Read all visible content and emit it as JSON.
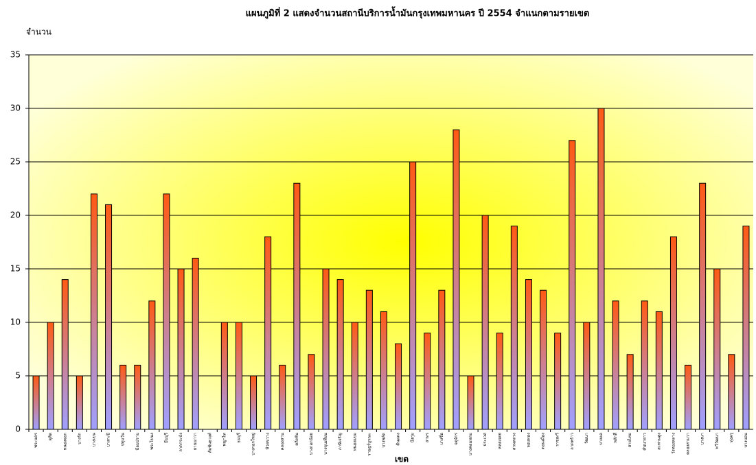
{
  "chart_data": {
    "type": "bar",
    "title": "แผนภูมิที่ 2 แสดงจำนวนสถานีบริการน้ำมันกรุงเทพมหานคร ปี 2554 จำแนกตามรายเขต",
    "y_label": "จำนวน",
    "x_label": "เขต",
    "categories": [
      "พระนคร",
      "ดุสิต",
      "หนองจอก",
      "บางรัก",
      "บางเขน",
      "บางกะปิ",
      "ปทุมวัน",
      "ป้อมปราบ",
      "พระโขนง",
      "มีนบุรี",
      "ลาดกระบัง",
      "ยานนาวา",
      "สัมพันธวงศ์",
      "พญาไท",
      "ธนบุรี",
      "บางกอกใหญ่",
      "ห้วยขวาง",
      "คลองสาน",
      "ตลิ่งชัน",
      "บางกอกน้อย",
      "บางขุนเทียน",
      "ภาษีเจริญ",
      "หนองแขม",
      "ราษฎร์บูรณะ",
      "บางพลัด",
      "ดินแดง",
      "บึงกุ่ม",
      "สาทร",
      "บางซื่อ",
      "จตุจักร",
      "บางคอแหลม",
      "ประเวศ",
      "คลองเตย",
      "สวนหลวง",
      "จอมทอง",
      "ดอนเมือง",
      "ราชเทวี",
      "ลาดพร้าว",
      "วัฒนา",
      "บางแค",
      "หลักสี่",
      "สายไหม",
      "คันนายาว",
      "สะพานสูง",
      "วังทองหลาง",
      "คลองสามวา",
      "บางนา",
      "ทวีวัฒนา",
      "ทุ่งครุ",
      "บางบอน"
    ],
    "values": [
      5,
      10,
      14,
      5,
      22,
      21,
      6,
      6,
      12,
      22,
      15,
      16,
      0,
      10,
      10,
      5,
      18,
      6,
      23,
      7,
      15,
      14,
      10,
      13,
      11,
      8,
      25,
      9,
      13,
      28,
      5,
      20,
      9,
      19,
      14,
      13,
      9,
      27,
      10,
      30,
      12,
      7,
      12,
      11,
      18,
      6,
      23,
      15,
      7,
      19
    ],
    "colors": [
      "#ff5a14",
      "#a0a0ff"
    ],
    "ylim": [
      0,
      35
    ],
    "yticks": [
      0,
      5,
      10,
      15,
      20,
      25,
      30,
      35
    ],
    "grid": true
  }
}
